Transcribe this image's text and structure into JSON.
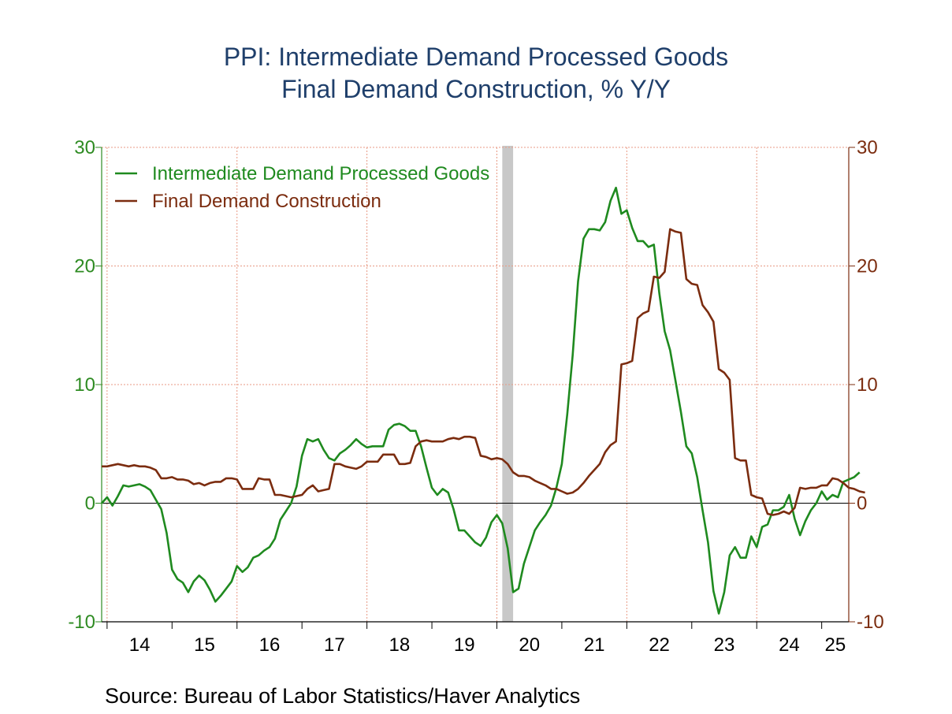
{
  "chart_data": {
    "type": "line",
    "title": "PPI: Intermediate Demand Processed Goods",
    "subtitle": "Final Demand Construction, % Y/Y",
    "source": "Source:  Bureau of Labor Statistics/Haver Analytics",
    "ylim": [
      -10,
      30
    ],
    "y_ticks": [
      "30",
      "20",
      "10",
      "0",
      "-10"
    ],
    "y_tick_values": [
      30,
      20,
      10,
      0,
      -10
    ],
    "x_start": "2013-12",
    "x_end": "2025-06",
    "x_tick_labels": [
      "14",
      "15",
      "16",
      "17",
      "18",
      "19",
      "20",
      "21",
      "22",
      "23",
      "24",
      "25"
    ],
    "recession_shading": [
      "2020-02",
      "2020-04"
    ],
    "grid": true,
    "legend_position": "top-left",
    "colors": {
      "intermediate": "#1f8a1f",
      "construction": "#7b2c0f",
      "grid": "#e89a84",
      "recession": "#c8c8c8",
      "left_axis": "#2e8b22",
      "right_axis": "#7b2c0f"
    },
    "series": [
      {
        "name": "Intermediate Demand Processed Goods",
        "color_key": "intermediate",
        "points": [
          [
            "2013-12",
            0
          ],
          [
            "2014-01",
            0.5
          ],
          [
            "2014-02",
            -0.2
          ],
          [
            "2014-03",
            0.6
          ],
          [
            "2014-04",
            1.5
          ],
          [
            "2014-05",
            1.4
          ],
          [
            "2014-06",
            1.5
          ],
          [
            "2014-07",
            1.6
          ],
          [
            "2014-08",
            1.4
          ],
          [
            "2014-09",
            1.1
          ],
          [
            "2014-10",
            0.3
          ],
          [
            "2014-11",
            -0.5
          ],
          [
            "2014-12",
            -2.5
          ],
          [
            "2015-01",
            -5.6
          ],
          [
            "2015-02",
            -6.4
          ],
          [
            "2015-03",
            -6.7
          ],
          [
            "2015-04",
            -7.5
          ],
          [
            "2015-05",
            -6.6
          ],
          [
            "2015-06",
            -6.1
          ],
          [
            "2015-07",
            -6.5
          ],
          [
            "2015-08",
            -7.3
          ],
          [
            "2015-09",
            -8.3
          ],
          [
            "2015-10",
            -7.8
          ],
          [
            "2015-11",
            -7.2
          ],
          [
            "2015-12",
            -6.6
          ],
          [
            "2016-01",
            -5.3
          ],
          [
            "2016-02",
            -5.8
          ],
          [
            "2016-03",
            -5.4
          ],
          [
            "2016-04",
            -4.6
          ],
          [
            "2016-05",
            -4.4
          ],
          [
            "2016-06",
            -4.0
          ],
          [
            "2016-07",
            -3.7
          ],
          [
            "2016-08",
            -3.0
          ],
          [
            "2016-09",
            -1.4
          ],
          [
            "2016-10",
            -0.7
          ],
          [
            "2016-11",
            0
          ],
          [
            "2016-12",
            1.4
          ],
          [
            "2017-01",
            4.0
          ],
          [
            "2017-02",
            5.4
          ],
          [
            "2017-03",
            5.2
          ],
          [
            "2017-04",
            5.4
          ],
          [
            "2017-05",
            4.5
          ],
          [
            "2017-06",
            3.8
          ],
          [
            "2017-07",
            3.6
          ],
          [
            "2017-08",
            4.2
          ],
          [
            "2017-09",
            4.5
          ],
          [
            "2017-10",
            4.9
          ],
          [
            "2017-11",
            5.4
          ],
          [
            "2017-12",
            5.0
          ],
          [
            "2018-01",
            4.7
          ],
          [
            "2018-02",
            4.8
          ],
          [
            "2018-03",
            4.8
          ],
          [
            "2018-04",
            4.8
          ],
          [
            "2018-05",
            6.2
          ],
          [
            "2018-06",
            6.6
          ],
          [
            "2018-07",
            6.7
          ],
          [
            "2018-08",
            6.5
          ],
          [
            "2018-09",
            6.1
          ],
          [
            "2018-10",
            6.1
          ],
          [
            "2018-11",
            4.8
          ],
          [
            "2018-12",
            3.0
          ],
          [
            "2019-01",
            1.3
          ],
          [
            "2019-02",
            0.7
          ],
          [
            "2019-03",
            1.2
          ],
          [
            "2019-04",
            0.9
          ],
          [
            "2019-05",
            -0.5
          ],
          [
            "2019-06",
            -2.3
          ],
          [
            "2019-07",
            -2.3
          ],
          [
            "2019-08",
            -2.8
          ],
          [
            "2019-09",
            -3.3
          ],
          [
            "2019-10",
            -3.6
          ],
          [
            "2019-11",
            -2.9
          ],
          [
            "2019-12",
            -1.6
          ],
          [
            "2020-01",
            -1.0
          ],
          [
            "2020-02",
            -1.7
          ],
          [
            "2020-03",
            -3.8
          ],
          [
            "2020-04",
            -7.5
          ],
          [
            "2020-05",
            -7.2
          ],
          [
            "2020-06",
            -5.1
          ],
          [
            "2020-07",
            -3.7
          ],
          [
            "2020-08",
            -2.3
          ],
          [
            "2020-09",
            -1.6
          ],
          [
            "2020-10",
            -1.0
          ],
          [
            "2020-11",
            -0.2
          ],
          [
            "2020-12",
            1.3
          ],
          [
            "2021-01",
            3.3
          ],
          [
            "2021-02",
            7.5
          ],
          [
            "2021-03",
            12.5
          ],
          [
            "2021-04",
            18.7
          ],
          [
            "2021-05",
            22.3
          ],
          [
            "2021-06",
            23.1
          ],
          [
            "2021-07",
            23.1
          ],
          [
            "2021-08",
            23.0
          ],
          [
            "2021-09",
            23.7
          ],
          [
            "2021-10",
            25.5
          ],
          [
            "2021-11",
            26.6
          ],
          [
            "2021-12",
            24.4
          ],
          [
            "2022-01",
            24.7
          ],
          [
            "2022-02",
            23.2
          ],
          [
            "2022-03",
            22.1
          ],
          [
            "2022-04",
            22.1
          ],
          [
            "2022-05",
            21.6
          ],
          [
            "2022-06",
            21.8
          ],
          [
            "2022-07",
            17.7
          ],
          [
            "2022-08",
            14.5
          ],
          [
            "2022-09",
            12.9
          ],
          [
            "2022-10",
            10.3
          ],
          [
            "2022-11",
            7.7
          ],
          [
            "2022-12",
            4.8
          ],
          [
            "2023-01",
            4.2
          ],
          [
            "2023-02",
            2.2
          ],
          [
            "2023-03",
            -0.6
          ],
          [
            "2023-04",
            -3.3
          ],
          [
            "2023-05",
            -7.4
          ],
          [
            "2023-06",
            -9.3
          ],
          [
            "2023-07",
            -7.5
          ],
          [
            "2023-08",
            -4.4
          ],
          [
            "2023-09",
            -3.7
          ],
          [
            "2023-10",
            -4.6
          ],
          [
            "2023-11",
            -4.6
          ],
          [
            "2023-12",
            -2.8
          ],
          [
            "2024-01",
            -3.7
          ],
          [
            "2024-02",
            -2.0
          ],
          [
            "2024-03",
            -1.8
          ],
          [
            "2024-04",
            -0.6
          ],
          [
            "2024-05",
            -0.6
          ],
          [
            "2024-06",
            -0.3
          ],
          [
            "2024-07",
            0.7
          ],
          [
            "2024-08",
            -1.3
          ],
          [
            "2024-09",
            -2.7
          ],
          [
            "2024-10",
            -1.5
          ],
          [
            "2024-11",
            -0.6
          ],
          [
            "2024-12",
            0
          ],
          [
            "2025-01",
            1.0
          ],
          [
            "2025-02",
            0.3
          ],
          [
            "2025-03",
            0.7
          ],
          [
            "2025-04",
            0.5
          ],
          [
            "2025-05",
            1.8
          ],
          [
            "2025-06",
            2.0
          ],
          [
            "2025-07",
            2.2
          ],
          [
            "2025-08",
            2.6
          ]
        ]
      },
      {
        "name": "Final Demand Construction",
        "color_key": "construction",
        "points": [
          [
            "2013-12",
            3.1
          ],
          [
            "2014-01",
            3.1
          ],
          [
            "2014-02",
            3.2
          ],
          [
            "2014-03",
            3.3
          ],
          [
            "2014-04",
            3.2
          ],
          [
            "2014-05",
            3.1
          ],
          [
            "2014-06",
            3.2
          ],
          [
            "2014-07",
            3.1
          ],
          [
            "2014-08",
            3.1
          ],
          [
            "2014-09",
            3.0
          ],
          [
            "2014-10",
            2.8
          ],
          [
            "2014-11",
            2.1
          ],
          [
            "2014-12",
            2.1
          ],
          [
            "2015-01",
            2.2
          ],
          [
            "2015-02",
            2.0
          ],
          [
            "2015-03",
            2.0
          ],
          [
            "2015-04",
            1.9
          ],
          [
            "2015-05",
            1.6
          ],
          [
            "2015-06",
            1.7
          ],
          [
            "2015-07",
            1.5
          ],
          [
            "2015-08",
            1.7
          ],
          [
            "2015-09",
            1.8
          ],
          [
            "2015-10",
            1.8
          ],
          [
            "2015-11",
            2.1
          ],
          [
            "2015-12",
            2.1
          ],
          [
            "2016-01",
            2.0
          ],
          [
            "2016-02",
            1.2
          ],
          [
            "2016-03",
            1.2
          ],
          [
            "2016-04",
            1.2
          ],
          [
            "2016-05",
            2.1
          ],
          [
            "2016-06",
            2.0
          ],
          [
            "2016-07",
            2.0
          ],
          [
            "2016-08",
            0.7
          ],
          [
            "2016-09",
            0.7
          ],
          [
            "2016-10",
            0.6
          ],
          [
            "2016-11",
            0.5
          ],
          [
            "2016-12",
            0.6
          ],
          [
            "2017-01",
            0.7
          ],
          [
            "2017-02",
            1.2
          ],
          [
            "2017-03",
            1.5
          ],
          [
            "2017-04",
            1.0
          ],
          [
            "2017-05",
            1.1
          ],
          [
            "2017-06",
            1.2
          ],
          [
            "2017-07",
            3.3
          ],
          [
            "2017-08",
            3.3
          ],
          [
            "2017-09",
            3.1
          ],
          [
            "2017-10",
            3.0
          ],
          [
            "2017-11",
            2.9
          ],
          [
            "2017-12",
            3.1
          ],
          [
            "2018-01",
            3.5
          ],
          [
            "2018-02",
            3.5
          ],
          [
            "2018-03",
            3.5
          ],
          [
            "2018-04",
            4.1
          ],
          [
            "2018-05",
            4.1
          ],
          [
            "2018-06",
            4.1
          ],
          [
            "2018-07",
            3.3
          ],
          [
            "2018-08",
            3.3
          ],
          [
            "2018-09",
            3.4
          ],
          [
            "2018-10",
            4.8
          ],
          [
            "2018-11",
            5.2
          ],
          [
            "2018-12",
            5.3
          ],
          [
            "2019-01",
            5.2
          ],
          [
            "2019-02",
            5.2
          ],
          [
            "2019-03",
            5.2
          ],
          [
            "2019-04",
            5.4
          ],
          [
            "2019-05",
            5.5
          ],
          [
            "2019-06",
            5.4
          ],
          [
            "2019-07",
            5.6
          ],
          [
            "2019-08",
            5.6
          ],
          [
            "2019-09",
            5.5
          ],
          [
            "2019-10",
            4.0
          ],
          [
            "2019-11",
            3.9
          ],
          [
            "2019-12",
            3.7
          ],
          [
            "2020-01",
            3.8
          ],
          [
            "2020-02",
            3.7
          ],
          [
            "2020-03",
            3.3
          ],
          [
            "2020-04",
            2.6
          ],
          [
            "2020-05",
            2.3
          ],
          [
            "2020-06",
            2.3
          ],
          [
            "2020-07",
            2.2
          ],
          [
            "2020-08",
            1.9
          ],
          [
            "2020-09",
            1.7
          ],
          [
            "2020-10",
            1.5
          ],
          [
            "2020-11",
            1.2
          ],
          [
            "2020-12",
            1.2
          ],
          [
            "2021-01",
            1.0
          ],
          [
            "2021-02",
            0.8
          ],
          [
            "2021-03",
            0.9
          ],
          [
            "2021-04",
            1.2
          ],
          [
            "2021-05",
            1.7
          ],
          [
            "2021-06",
            2.3
          ],
          [
            "2021-07",
            2.8
          ],
          [
            "2021-08",
            3.3
          ],
          [
            "2021-09",
            4.3
          ],
          [
            "2021-10",
            4.9
          ],
          [
            "2021-11",
            5.2
          ],
          [
            "2021-12",
            11.7
          ],
          [
            "2022-01",
            11.8
          ],
          [
            "2022-02",
            12.0
          ],
          [
            "2022-03",
            15.6
          ],
          [
            "2022-04",
            16.0
          ],
          [
            "2022-05",
            16.2
          ],
          [
            "2022-06",
            19.1
          ],
          [
            "2022-07",
            19.0
          ],
          [
            "2022-08",
            19.5
          ],
          [
            "2022-09",
            23.1
          ],
          [
            "2022-10",
            22.9
          ],
          [
            "2022-11",
            22.8
          ],
          [
            "2022-12",
            18.9
          ],
          [
            "2023-01",
            18.5
          ],
          [
            "2023-02",
            18.4
          ],
          [
            "2023-03",
            16.7
          ],
          [
            "2023-04",
            16.1
          ],
          [
            "2023-05",
            15.3
          ],
          [
            "2023-06",
            11.3
          ],
          [
            "2023-07",
            11.0
          ],
          [
            "2023-08",
            10.4
          ],
          [
            "2023-09",
            3.8
          ],
          [
            "2023-10",
            3.6
          ],
          [
            "2023-11",
            3.6
          ],
          [
            "2023-12",
            0.7
          ],
          [
            "2024-01",
            0.5
          ],
          [
            "2024-02",
            0.4
          ],
          [
            "2024-03",
            -0.9
          ],
          [
            "2024-04",
            -1.0
          ],
          [
            "2024-05",
            -0.9
          ],
          [
            "2024-06",
            -0.7
          ],
          [
            "2024-07",
            -0.9
          ],
          [
            "2024-08",
            -0.4
          ],
          [
            "2024-09",
            1.3
          ],
          [
            "2024-10",
            1.2
          ],
          [
            "2024-11",
            1.3
          ],
          [
            "2024-12",
            1.3
          ],
          [
            "2025-01",
            1.5
          ],
          [
            "2025-02",
            1.5
          ],
          [
            "2025-03",
            2.1
          ],
          [
            "2025-04",
            2.0
          ],
          [
            "2025-05",
            1.7
          ],
          [
            "2025-06",
            1.3
          ],
          [
            "2025-07",
            1.2
          ],
          [
            "2025-08",
            1.0
          ],
          [
            "2025-09",
            0.9
          ]
        ]
      }
    ]
  }
}
